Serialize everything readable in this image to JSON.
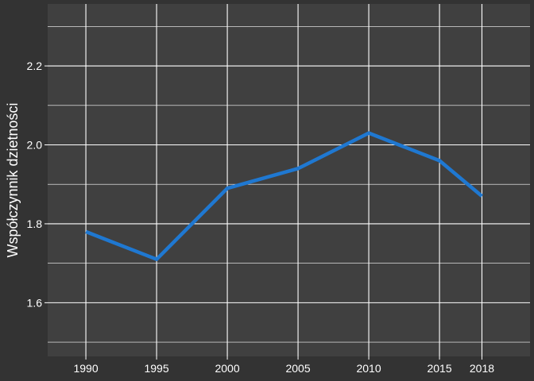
{
  "chart_data": {
    "type": "line",
    "xlabel": "",
    "ylabel": "Współczynnik dzietności",
    "x": [
      1990,
      1995,
      2000,
      2005,
      2010,
      2015,
      2018
    ],
    "x_ticks": [
      1990,
      1995,
      2000,
      2005,
      2010,
      2015,
      2018
    ],
    "x_tick_labels": [
      "1990",
      "1995",
      "2000",
      "2005",
      "2010",
      "2015",
      "2018"
    ],
    "xlim": [
      1987.3,
      2021.4
    ],
    "series": [
      {
        "values": [
          1.78,
          1.71,
          1.89,
          1.94,
          2.03,
          1.96,
          1.87
        ]
      }
    ],
    "y_ticks": [
      1.6,
      1.8,
      2.0,
      2.2
    ],
    "y_tick_labels": [
      "1.6",
      "1.8",
      "2.0",
      "2.2"
    ],
    "y_minor_ticks": [
      1.5,
      1.7,
      1.9,
      2.1,
      2.3
    ],
    "ylim": [
      1.464,
      2.357
    ],
    "grid": true
  },
  "colors": {
    "page_background": "#333333",
    "panel_background": "#404040",
    "grid": "#ffffff",
    "line": "#1f78d1",
    "text": "#ffffff"
  }
}
